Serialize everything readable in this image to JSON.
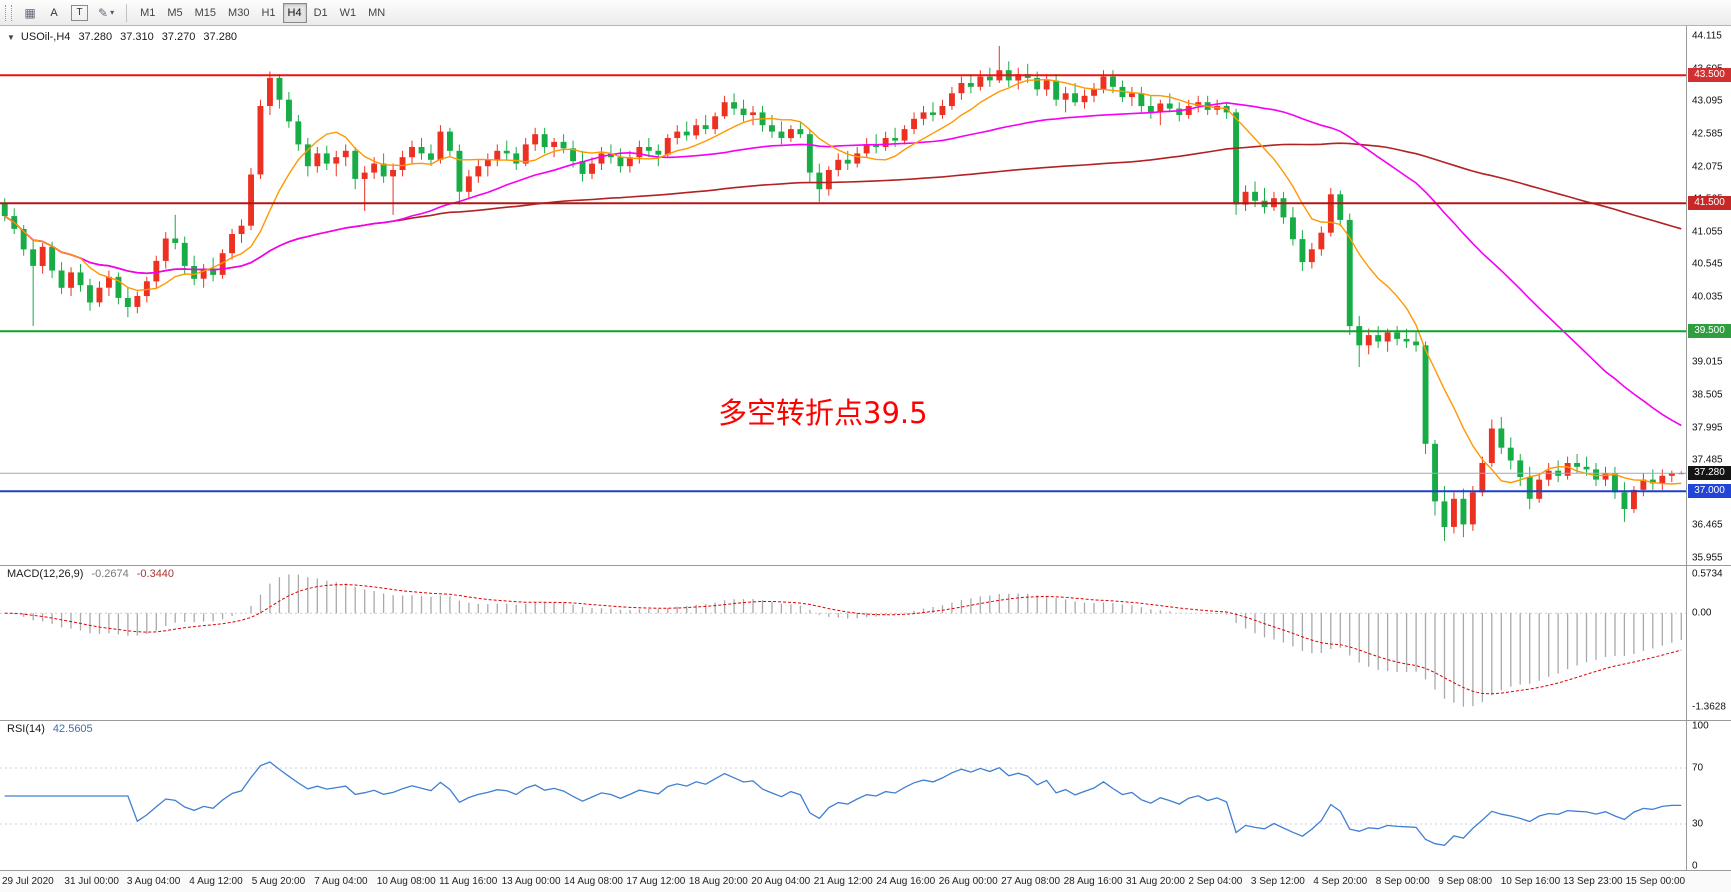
{
  "toolbar": {
    "tools": [
      {
        "glyph": "▦"
      },
      {
        "label": "A"
      },
      {
        "label": "T"
      },
      {
        "glyph": "✎",
        "dropdown_glyph": "▾"
      }
    ],
    "timeframes": [
      "M1",
      "M5",
      "M15",
      "M30",
      "H1",
      "H4",
      "D1",
      "W1",
      "MN"
    ],
    "active_timeframe": "H4"
  },
  "header": {
    "collapse_glyph": "▼",
    "symbol": "USOil-,H4",
    "open": "37.280",
    "high": "37.310",
    "low": "37.270",
    "close": "37.280"
  },
  "price_axis": {
    "labels": [
      "44.115",
      "43.605",
      "43.095",
      "42.585",
      "42.075",
      "41.565",
      "41.055",
      "40.545",
      "40.035",
      "39.525",
      "39.015",
      "38.505",
      "37.995",
      "37.485",
      "36.975",
      "36.465",
      "35.955"
    ]
  },
  "macd_panel": {
    "name": "MACD(12,26,9)",
    "main_value": "-0.2674",
    "signal_value": "-0.3440",
    "axis": [
      {
        "label": "0.5734",
        "value": 0.5734
      },
      {
        "label": "0.00",
        "value": 0
      },
      {
        "label": "-1.3628",
        "value": -1.3628
      }
    ]
  },
  "rsi_panel": {
    "name": "RSI(14)",
    "value": "42.5605",
    "axis": [
      {
        "label": "100",
        "value": 100
      },
      {
        "label": "70",
        "value": 70
      },
      {
        "label": "30",
        "value": 30
      },
      {
        "label": "0",
        "value": 0
      }
    ],
    "guide_levels": [
      70,
      30
    ]
  },
  "chart_data": {
    "type": "candlestick",
    "symbol": "USOil-",
    "timeframe": "H4",
    "title": "USOil-,H4 37.280 37.310 37.270 37.280",
    "y_range": [
      35.955,
      44.115
    ],
    "annotation": {
      "text": "多空转折点39.5",
      "color": "#ff0000"
    },
    "levels": [
      {
        "price": 43.5,
        "label": "43.500",
        "line_color": "#ee1111",
        "badge_color": "#d03030",
        "thickness": 2
      },
      {
        "price": 41.5,
        "label": "41.500",
        "line_color": "#b01818",
        "badge_color": "#c62828",
        "thickness": 2
      },
      {
        "price": 39.5,
        "label": "39.500",
        "line_color": "#0ba32a",
        "badge_color": "#2e9e3e",
        "thickness": 2
      },
      {
        "price": 37.28,
        "label": "37.280",
        "line_color": "#8fb0c6",
        "badge_color": "#141414",
        "thickness": 1
      },
      {
        "price": 37.0,
        "label": "37.000",
        "line_color": "#2040c8",
        "badge_color": "#2145d6",
        "thickness": 2
      }
    ],
    "colors": {
      "up": "#ec3123",
      "down": "#18ac46",
      "ma_fast": "#ff9800",
      "ma_mid": "#f500f5",
      "ma_slow": "#b22222",
      "macd_hist": "#a9a9a9",
      "macd_signal": "#e00000",
      "rsi": "#3f7fd2"
    },
    "x_labels": [
      "29 Jul 2020",
      "31 Jul 00:00",
      "3 Aug 04:00",
      "4 Aug 12:00",
      "5 Aug 20:00",
      "7 Aug 04:00",
      "10 Aug 08:00",
      "11 Aug 16:00",
      "13 Aug 00:00",
      "14 Aug 08:00",
      "17 Aug 12:00",
      "18 Aug 20:00",
      "20 Aug 04:00",
      "21 Aug 12:00",
      "24 Aug 16:00",
      "26 Aug 00:00",
      "27 Aug 08:00",
      "28 Aug 16:00",
      "31 Aug 20:00",
      "2 Sep 04:00",
      "3 Sep 12:00",
      "4 Sep 20:00",
      "8 Sep 00:00",
      "9 Sep 08:00",
      "10 Sep 16:00",
      "13 Sep 23:00",
      "15 Sep 00:00"
    ],
    "candles": [
      [
        41.5,
        41.58,
        41.22,
        41.3
      ],
      [
        41.3,
        41.42,
        41.02,
        41.1
      ],
      [
        41.1,
        41.16,
        40.68,
        40.78
      ],
      [
        40.78,
        40.92,
        39.58,
        40.52
      ],
      [
        40.52,
        40.88,
        40.4,
        40.82
      ],
      [
        40.82,
        40.9,
        40.33,
        40.45
      ],
      [
        40.45,
        40.58,
        40.08,
        40.18
      ],
      [
        40.18,
        40.5,
        40.05,
        40.42
      ],
      [
        40.42,
        40.55,
        40.12,
        40.22
      ],
      [
        40.22,
        40.32,
        39.82,
        39.95
      ],
      [
        39.95,
        40.28,
        39.88,
        40.18
      ],
      [
        40.18,
        40.45,
        40.05,
        40.35
      ],
      [
        40.35,
        40.42,
        39.92,
        40.02
      ],
      [
        40.02,
        40.18,
        39.72,
        39.88
      ],
      [
        39.88,
        40.12,
        39.78,
        40.05
      ],
      [
        40.05,
        40.35,
        39.95,
        40.28
      ],
      [
        40.28,
        40.68,
        40.18,
        40.6
      ],
      [
        40.6,
        41.05,
        40.48,
        40.95
      ],
      [
        40.95,
        41.32,
        40.78,
        40.88
      ],
      [
        40.88,
        40.98,
        40.38,
        40.52
      ],
      [
        40.52,
        40.68,
        40.22,
        40.32
      ],
      [
        40.32,
        40.55,
        40.18,
        40.48
      ],
      [
        40.48,
        40.65,
        40.28,
        40.38
      ],
      [
        40.38,
        40.78,
        40.32,
        40.72
      ],
      [
        40.72,
        41.1,
        40.62,
        41.02
      ],
      [
        41.02,
        41.25,
        40.88,
        41.15
      ],
      [
        41.15,
        42.05,
        41.08,
        41.95
      ],
      [
        41.95,
        43.12,
        41.88,
        43.02
      ],
      [
        43.02,
        43.56,
        42.88,
        43.46
      ],
      [
        43.46,
        43.52,
        42.98,
        43.12
      ],
      [
        43.12,
        43.24,
        42.68,
        42.78
      ],
      [
        42.78,
        42.88,
        42.32,
        42.42
      ],
      [
        42.42,
        42.52,
        41.92,
        42.08
      ],
      [
        42.08,
        42.38,
        41.98,
        42.28
      ],
      [
        42.28,
        42.4,
        42.02,
        42.12
      ],
      [
        42.12,
        42.32,
        41.92,
        42.22
      ],
      [
        42.22,
        42.42,
        42.08,
        42.32
      ],
      [
        42.32,
        42.38,
        41.72,
        41.88
      ],
      [
        41.88,
        42.08,
        41.38,
        41.98
      ],
      [
        41.98,
        42.22,
        41.88,
        42.12
      ],
      [
        42.12,
        42.28,
        41.82,
        41.92
      ],
      [
        41.92,
        42.12,
        41.32,
        42.02
      ],
      [
        42.02,
        42.32,
        41.92,
        42.22
      ],
      [
        42.22,
        42.48,
        42.12,
        42.38
      ],
      [
        42.38,
        42.52,
        42.18,
        42.28
      ],
      [
        42.28,
        42.42,
        42.08,
        42.18
      ],
      [
        42.18,
        42.72,
        42.12,
        42.62
      ],
      [
        42.62,
        42.68,
        42.22,
        42.32
      ],
      [
        42.32,
        42.42,
        41.48,
        41.68
      ],
      [
        41.68,
        42.02,
        41.58,
        41.92
      ],
      [
        41.92,
        42.18,
        41.82,
        42.08
      ],
      [
        42.08,
        42.28,
        41.92,
        42.18
      ],
      [
        42.18,
        42.42,
        42.08,
        42.32
      ],
      [
        42.32,
        42.48,
        42.18,
        42.28
      ],
      [
        42.28,
        42.38,
        42.02,
        42.12
      ],
      [
        42.12,
        42.52,
        42.08,
        42.42
      ],
      [
        42.42,
        42.68,
        42.32,
        42.58
      ],
      [
        42.58,
        42.68,
        42.28,
        42.38
      ],
      [
        42.38,
        42.52,
        42.22,
        42.46
      ],
      [
        42.46,
        42.58,
        42.28,
        42.36
      ],
      [
        42.36,
        42.48,
        42.06,
        42.16
      ],
      [
        42.16,
        42.32,
        41.84,
        41.96
      ],
      [
        41.96,
        42.22,
        41.88,
        42.12
      ],
      [
        42.12,
        42.38,
        42.02,
        42.28
      ],
      [
        42.28,
        42.42,
        42.12,
        42.22
      ],
      [
        42.22,
        42.36,
        41.98,
        42.08
      ],
      [
        42.08,
        42.32,
        41.98,
        42.22
      ],
      [
        42.22,
        42.48,
        42.12,
        42.38
      ],
      [
        42.38,
        42.52,
        42.22,
        42.32
      ],
      [
        42.32,
        42.42,
        42.08,
        42.26
      ],
      [
        42.26,
        42.58,
        42.22,
        42.52
      ],
      [
        42.52,
        42.72,
        42.42,
        42.62
      ],
      [
        42.62,
        42.78,
        42.48,
        42.56
      ],
      [
        42.56,
        42.82,
        42.5,
        42.72
      ],
      [
        42.72,
        42.88,
        42.58,
        42.66
      ],
      [
        42.66,
        42.92,
        42.58,
        42.86
      ],
      [
        42.86,
        43.18,
        42.82,
        43.08
      ],
      [
        43.08,
        43.22,
        42.88,
        42.98
      ],
      [
        42.98,
        43.12,
        42.78,
        42.88
      ],
      [
        42.88,
        43.02,
        42.72,
        42.92
      ],
      [
        42.92,
        43.02,
        42.62,
        42.72
      ],
      [
        42.72,
        42.88,
        42.52,
        42.62
      ],
      [
        42.62,
        42.78,
        42.42,
        42.52
      ],
      [
        42.52,
        42.72,
        42.46,
        42.66
      ],
      [
        42.66,
        42.76,
        42.52,
        42.58
      ],
      [
        42.58,
        42.66,
        41.82,
        41.98
      ],
      [
        41.98,
        42.12,
        41.52,
        41.72
      ],
      [
        41.72,
        42.08,
        41.62,
        42.02
      ],
      [
        42.02,
        42.28,
        41.92,
        42.18
      ],
      [
        42.18,
        42.32,
        42.02,
        42.12
      ],
      [
        42.12,
        42.38,
        42.06,
        42.28
      ],
      [
        42.28,
        42.52,
        42.22,
        42.42
      ],
      [
        42.42,
        42.58,
        42.28,
        42.38
      ],
      [
        42.38,
        42.62,
        42.32,
        42.52
      ],
      [
        42.52,
        42.68,
        42.38,
        42.48
      ],
      [
        42.48,
        42.72,
        42.42,
        42.66
      ],
      [
        42.66,
        42.92,
        42.58,
        42.82
      ],
      [
        42.82,
        43.02,
        42.72,
        42.92
      ],
      [
        42.92,
        43.08,
        42.78,
        42.88
      ],
      [
        42.88,
        43.12,
        42.82,
        43.02
      ],
      [
        43.02,
        43.32,
        42.96,
        43.22
      ],
      [
        43.22,
        43.48,
        43.12,
        43.38
      ],
      [
        43.38,
        43.52,
        43.22,
        43.32
      ],
      [
        43.32,
        43.58,
        43.26,
        43.48
      ],
      [
        43.48,
        43.62,
        43.32,
        43.42
      ],
      [
        43.42,
        43.96,
        43.38,
        43.58
      ],
      [
        43.58,
        43.72,
        43.32,
        43.42
      ],
      [
        43.42,
        43.62,
        43.28,
        43.52
      ],
      [
        43.52,
        43.68,
        43.38,
        43.46
      ],
      [
        43.46,
        43.56,
        43.18,
        43.28
      ],
      [
        43.28,
        43.52,
        43.18,
        43.42
      ],
      [
        43.42,
        43.52,
        43.02,
        43.12
      ],
      [
        43.12,
        43.32,
        42.92,
        43.22
      ],
      [
        43.22,
        43.38,
        43.02,
        43.08
      ],
      [
        43.08,
        43.28,
        42.98,
        43.18
      ],
      [
        43.18,
        43.38,
        43.08,
        43.28
      ],
      [
        43.28,
        43.58,
        43.22,
        43.48
      ],
      [
        43.48,
        43.58,
        43.22,
        43.32
      ],
      [
        43.32,
        43.42,
        43.08,
        43.16
      ],
      [
        43.16,
        43.32,
        43.02,
        43.22
      ],
      [
        43.22,
        43.32,
        42.92,
        43.02
      ],
      [
        43.02,
        43.18,
        42.82,
        42.92
      ],
      [
        42.92,
        43.12,
        42.72,
        43.06
      ],
      [
        43.06,
        43.22,
        42.92,
        42.98
      ],
      [
        42.98,
        43.08,
        42.78,
        42.88
      ],
      [
        42.88,
        43.12,
        42.82,
        43.02
      ],
      [
        43.02,
        43.18,
        42.92,
        43.08
      ],
      [
        43.08,
        43.18,
        42.88,
        42.96
      ],
      [
        42.96,
        43.12,
        42.88,
        43.02
      ],
      [
        43.02,
        43.08,
        42.82,
        42.92
      ],
      [
        42.92,
        42.98,
        41.32,
        41.48
      ],
      [
        41.48,
        41.78,
        41.38,
        41.68
      ],
      [
        41.68,
        41.84,
        41.44,
        41.54
      ],
      [
        41.54,
        41.74,
        41.34,
        41.44
      ],
      [
        41.44,
        41.68,
        41.38,
        41.58
      ],
      [
        41.58,
        41.68,
        41.18,
        41.28
      ],
      [
        41.28,
        41.44,
        40.84,
        40.94
      ],
      [
        40.94,
        41.08,
        40.44,
        40.58
      ],
      [
        40.58,
        40.88,
        40.48,
        40.78
      ],
      [
        40.78,
        41.14,
        40.68,
        41.04
      ],
      [
        41.04,
        41.74,
        40.98,
        41.64
      ],
      [
        41.64,
        41.7,
        41.14,
        41.24
      ],
      [
        41.24,
        41.34,
        39.44,
        39.58
      ],
      [
        39.58,
        39.74,
        38.94,
        39.28
      ],
      [
        39.28,
        39.54,
        39.14,
        39.44
      ],
      [
        39.44,
        39.58,
        39.24,
        39.34
      ],
      [
        39.34,
        39.54,
        39.18,
        39.48
      ],
      [
        39.48,
        39.58,
        39.28,
        39.38
      ],
      [
        39.38,
        39.54,
        39.24,
        39.34
      ],
      [
        39.34,
        39.48,
        39.18,
        39.28
      ],
      [
        39.28,
        39.34,
        37.58,
        37.74
      ],
      [
        37.74,
        37.8,
        36.62,
        36.84
      ],
      [
        36.84,
        37.08,
        36.22,
        36.44
      ],
      [
        36.44,
        36.98,
        36.34,
        36.88
      ],
      [
        36.88,
        37.04,
        36.28,
        36.48
      ],
      [
        36.48,
        37.08,
        36.38,
        36.98
      ],
      [
        36.98,
        37.54,
        36.92,
        37.44
      ],
      [
        37.44,
        38.12,
        37.38,
        37.98
      ],
      [
        37.98,
        38.16,
        37.58,
        37.68
      ],
      [
        37.68,
        37.84,
        37.34,
        37.48
      ],
      [
        37.48,
        37.58,
        37.08,
        37.22
      ],
      [
        37.22,
        37.38,
        36.72,
        36.88
      ],
      [
        36.88,
        37.28,
        36.82,
        37.18
      ],
      [
        37.18,
        37.44,
        37.08,
        37.32
      ],
      [
        37.32,
        37.48,
        37.14,
        37.24
      ],
      [
        37.24,
        37.54,
        37.18,
        37.44
      ],
      [
        37.44,
        37.58,
        37.28,
        37.38
      ],
      [
        37.38,
        37.54,
        37.24,
        37.34
      ],
      [
        37.34,
        37.44,
        37.08,
        37.18
      ],
      [
        37.18,
        37.38,
        37.08,
        37.28
      ],
      [
        37.28,
        37.38,
        36.88,
        36.98
      ],
      [
        36.98,
        37.14,
        36.52,
        36.72
      ],
      [
        36.72,
        37.08,
        36.66,
        37.02
      ],
      [
        37.02,
        37.28,
        36.92,
        37.18
      ],
      [
        37.18,
        37.34,
        37.02,
        37.12
      ],
      [
        37.12,
        37.34,
        37.02,
        37.24
      ],
      [
        37.24,
        37.32,
        37.14,
        37.28
      ],
      [
        37.28,
        37.31,
        37.27,
        37.28
      ]
    ]
  }
}
